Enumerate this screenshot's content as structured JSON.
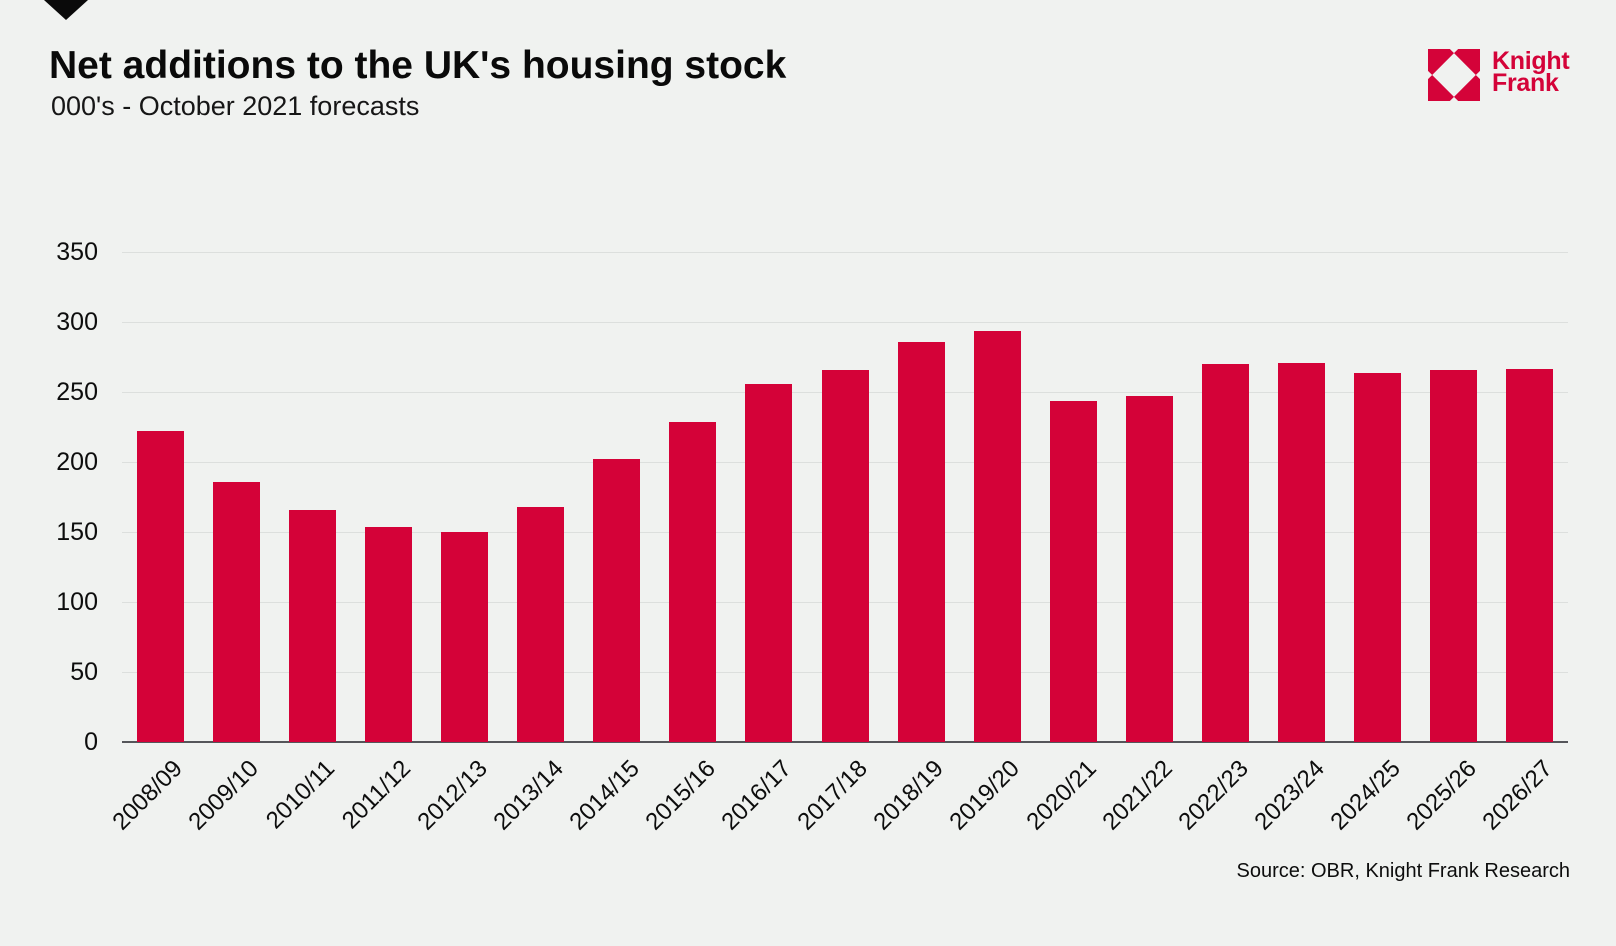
{
  "page": {
    "background": "#f0f2f0"
  },
  "header": {
    "title": "Net additions to the UK's housing stock",
    "subtitle": "000's - October 2021 forecasts"
  },
  "logo": {
    "icon": "knight-frank-diamond-icon",
    "line1": "Knight",
    "line2": "Frank",
    "color": "#d40339"
  },
  "footer": {
    "source": "Source: OBR, Knight Frank Research"
  },
  "chart_data": {
    "type": "bar",
    "title": "Net additions to the UK's housing stock",
    "subtitle": "000's - October 2021 forecasts",
    "categories": [
      "2008/09",
      "2009/10",
      "2010/11",
      "2011/12",
      "2012/13",
      "2013/14",
      "2014/15",
      "2015/16",
      "2016/17",
      "2017/18",
      "2018/19",
      "2019/20",
      "2020/21",
      "2021/22",
      "2022/23",
      "2023/24",
      "2024/25",
      "2025/26",
      "2026/27"
    ],
    "values": [
      222,
      186,
      166,
      154,
      150,
      168,
      202,
      229,
      256,
      266,
      286,
      294,
      244,
      247,
      270,
      271,
      264,
      266,
      267
    ],
    "xlabel": "",
    "ylabel": "",
    "ylim": [
      0,
      350
    ],
    "yticks": [
      0,
      50,
      100,
      150,
      200,
      250,
      300,
      350
    ],
    "grid": true,
    "legend": false,
    "bar_color": "#d40238",
    "gridline_color": "#dcdfdd",
    "axis_line_color": "#55565a"
  }
}
